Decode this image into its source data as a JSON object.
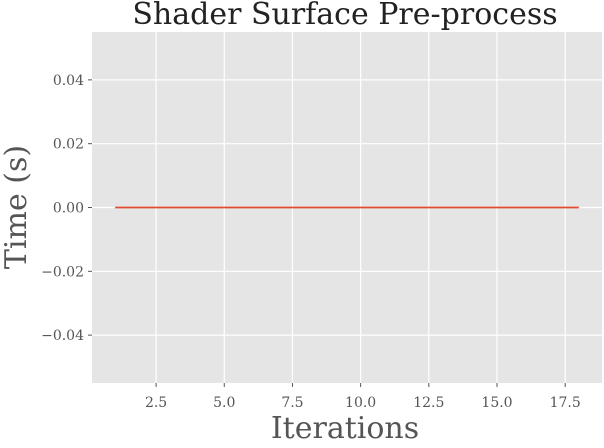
{
  "chart_data": {
    "type": "line",
    "title": "Shader Surface Pre-process",
    "xlabel": "Iterations",
    "ylabel": "Time (s)",
    "xlim": [
      0.15,
      18.85
    ],
    "ylim": [
      -0.055,
      0.055
    ],
    "xticks": [
      2.5,
      5.0,
      7.5,
      10.0,
      12.5,
      15.0,
      17.5
    ],
    "xtick_labels": [
      "2.5",
      "5.0",
      "7.5",
      "10.0",
      "12.5",
      "15.0",
      "17.5"
    ],
    "yticks": [
      0.04,
      0.02,
      0.0,
      -0.02,
      -0.04
    ],
    "ytick_labels": [
      "0.04",
      "0.02",
      "0.00",
      "−0.02",
      "−0.04"
    ],
    "grid": true,
    "legend": "none",
    "series": [
      {
        "x": [
          1,
          2,
          3,
          4,
          5,
          6,
          7,
          8,
          9,
          10,
          11,
          12,
          13,
          14,
          15,
          16,
          17,
          18
        ],
        "values": [
          0,
          0,
          0,
          0,
          0,
          0,
          0,
          0,
          0,
          0,
          0,
          0,
          0,
          0,
          0,
          0,
          0,
          0
        ],
        "color": "#e24a33"
      }
    ],
    "colors": {
      "plot_background": "#e5e5e5",
      "grid": "#ffffff",
      "text": "#555555",
      "title": "#222222"
    }
  }
}
